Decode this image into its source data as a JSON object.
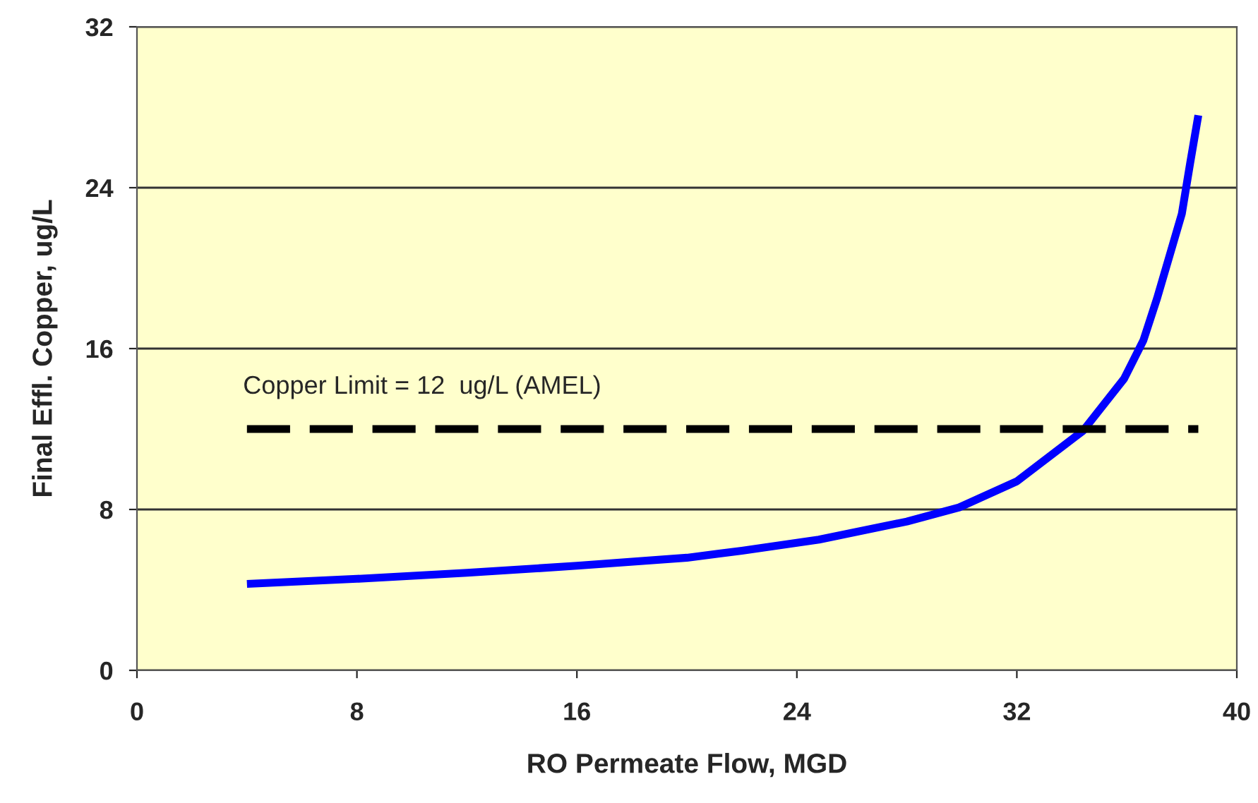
{
  "chart_data": {
    "type": "line",
    "xlabel": "RO Permeate Flow, MGD",
    "ylabel": "Final Effl. Copper, ug/L",
    "xlim": [
      0,
      40
    ],
    "xticks": [
      0,
      8,
      16,
      24,
      32,
      40
    ],
    "ylim": [
      0,
      32
    ],
    "yticks": [
      0,
      8,
      16,
      24,
      32
    ],
    "grid": "y",
    "series": [
      {
        "color": "#0000ff",
        "line_style": "solid",
        "x": [
          4,
          8,
          12,
          16,
          20,
          22,
          24.8,
          28,
          29.9,
          32,
          34.4,
          35.9,
          36.6,
          37.1,
          38,
          38.3,
          38.6
        ],
        "values": [
          4.3,
          4.55,
          4.85,
          5.2,
          5.6,
          5.95,
          6.5,
          7.4,
          8.1,
          9.4,
          11.9,
          14.5,
          16.4,
          18.5,
          22.7,
          25.2,
          27.6
        ]
      },
      {
        "color": "#000000",
        "line_style": "dashed",
        "x": [
          4,
          38.6
        ],
        "values": [
          12,
          12
        ]
      }
    ],
    "annotations": [
      {
        "text": "Copper Limit = 12  ug/L (AMEL)",
        "x": 4,
        "y": 12
      }
    ]
  }
}
